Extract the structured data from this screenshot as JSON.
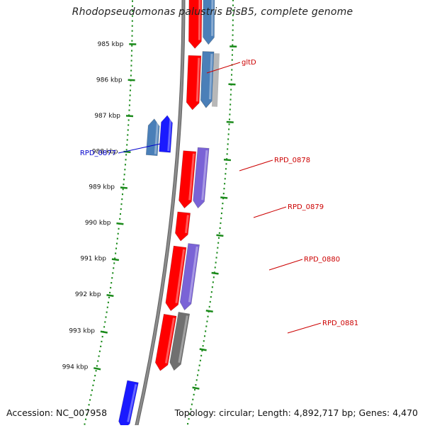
{
  "title": "Rhodopseudomonas palustris BisB5, complete genome",
  "footer": {
    "accession": "Accession: NC_007958",
    "stats": "Topology: circular; Length: 4,892,717 bp; Genes: 4,470"
  },
  "colors": {
    "backbone": "#8c8c8c",
    "ticks": "#1a8a1a",
    "forward_label": "#cc0000",
    "reverse_label": "#0000cc",
    "gene_red": "#ff0000",
    "gene_blue": "#1a1aff",
    "gene_steelblue": "#4a7fb8",
    "gene_purple": "#7a63d6",
    "gene_gray": "#707070",
    "gene_lightgray": "#b8b8b8"
  },
  "kbp_labels": [
    "985 kbp",
    "986 kbp",
    "987 kbp",
    "988 kbp",
    "989 kbp",
    "990 kbp",
    "991 kbp",
    "992 kbp",
    "993 kbp",
    "994 kbp"
  ],
  "gene_labels": [
    {
      "name": "gltD",
      "color": "#cc0000"
    },
    {
      "name": "RPD_0877",
      "color": "#0000cc"
    },
    {
      "name": "RPD_0878",
      "color": "#cc0000"
    },
    {
      "name": "RPD_0879",
      "color": "#cc0000"
    },
    {
      "name": "RPD_0880",
      "color": "#cc0000"
    },
    {
      "name": "RPD_0881",
      "color": "#cc0000"
    }
  ]
}
